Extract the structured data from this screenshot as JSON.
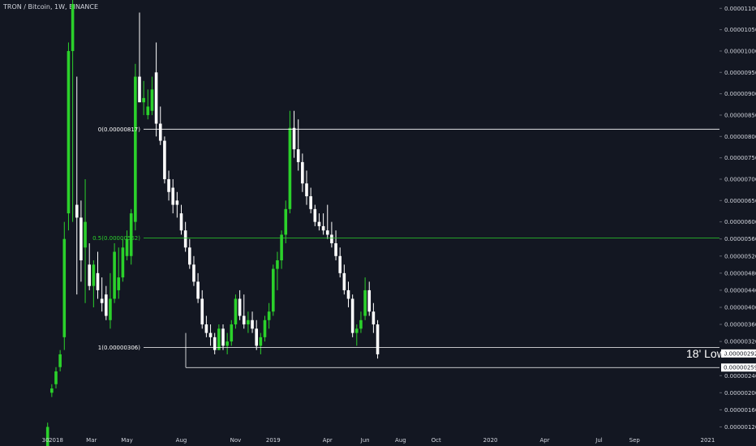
{
  "header": {
    "title": "TRON / Bitcoin, 1W, BINANCE"
  },
  "colors": {
    "background": "#131722",
    "bull": "#2bd12b",
    "bear": "#ffffff",
    "fib_line": "#ffffff",
    "mid_line": "#2bd12b"
  },
  "chart_data": {
    "type": "candlestick",
    "title": "TRON / Bitcoin, 1W, BINANCE",
    "ylim": [
      1e-06,
      1.11e-05
    ],
    "y_ticks": [
      "0.00001100",
      "0.00001050",
      "0.00001000",
      "0.00000950",
      "0.00000900",
      "0.00000850",
      "0.00000800",
      "0.00000750",
      "0.00000700",
      "0.00000650",
      "0.00000600",
      "0.00000560",
      "0.00000520",
      "0.00000480",
      "0.00000440",
      "0.00000400",
      "0.00000360",
      "0.00000320",
      "0.00000240",
      "0.00000200",
      "0.00000160",
      "0.00000120"
    ],
    "y_tick_values": [
      1.1e-05,
      1.05e-05,
      1e-05,
      9.5e-06,
      9e-06,
      8.5e-06,
      8e-06,
      7.5e-06,
      7e-06,
      6.5e-06,
      6e-06,
      5.6e-06,
      5.2e-06,
      4.8e-06,
      4.4e-06,
      4e-06,
      3.6e-06,
      3.2e-06,
      2.4e-06,
      2e-06,
      1.6e-06,
      1.2e-06
    ],
    "x_ticks": [
      {
        "label": "30",
        "week": -2.5
      },
      {
        "label": "2018",
        "week": 0
      },
      {
        "label": "Mar",
        "week": 8.5
      },
      {
        "label": "May",
        "week": 17
      },
      {
        "label": "Aug",
        "week": 30
      },
      {
        "label": "Nov",
        "week": 43
      },
      {
        "label": "2019",
        "week": 52
      },
      {
        "label": "Apr",
        "week": 65
      },
      {
        "label": "Jun",
        "week": 74
      },
      {
        "label": "Aug",
        "week": 82.5
      },
      {
        "label": "Oct",
        "week": 91
      },
      {
        "label": "2020",
        "week": 104
      },
      {
        "label": "Apr",
        "week": 117
      },
      {
        "label": "Jul",
        "week": 130
      },
      {
        "label": "Sep",
        "week": 138.5
      },
      {
        "label": "2021",
        "week": 156
      },
      {
        "label": "Apr",
        "week": 169
      }
    ],
    "candles": [
      {
        "o": 6e-07,
        "h": 1.3e-06,
        "l": 6e-07,
        "c": 1.2e-06
      },
      {
        "o": 2e-06,
        "h": 2.2e-06,
        "l": 1.9e-06,
        "c": 2.1e-06
      },
      {
        "o": 2.2e-06,
        "h": 2.6e-06,
        "l": 2.1e-06,
        "c": 2.5e-06
      },
      {
        "o": 2.6e-06,
        "h": 3e-06,
        "l": 2.5e-06,
        "c": 2.9e-06
      },
      {
        "o": 3.3e-06,
        "h": 6e-06,
        "l": 3e-06,
        "c": 5.6e-06
      },
      {
        "o": 6.2e-06,
        "h": 1.02e-05,
        "l": 5.8e-06,
        "c": 1e-05
      },
      {
        "o": 1e-05,
        "h": 1.12e-05,
        "l": 6e-06,
        "c": 1.11e-05
      },
      {
        "o": 6.4e-06,
        "h": 9.4e-06,
        "l": 4.3e-06,
        "c": 6.1e-06
      },
      {
        "o": 6.1e-06,
        "h": 6.5e-06,
        "l": 4.6e-06,
        "c": 5.1e-06
      },
      {
        "o": 5.4e-06,
        "h": 7e-06,
        "l": 4.1e-06,
        "c": 6e-06
      },
      {
        "o": 5e-06,
        "h": 5.5e-06,
        "l": 4.4e-06,
        "c": 4.5e-06
      },
      {
        "o": 4.5e-06,
        "h": 5.1e-06,
        "l": 4e-06,
        "c": 5e-06
      },
      {
        "o": 4.8e-06,
        "h": 5.3e-06,
        "l": 4.2e-06,
        "c": 4.4e-06
      },
      {
        "o": 4.2e-06,
        "h": 4.7e-06,
        "l": 3.9e-06,
        "c": 4.1e-06
      },
      {
        "o": 4.3e-06,
        "h": 4.5e-06,
        "l": 3.7e-06,
        "c": 3.8e-06
      },
      {
        "o": 3.7e-06,
        "h": 4.8e-06,
        "l": 3.5e-06,
        "c": 4.2e-06
      },
      {
        "o": 4.2e-06,
        "h": 5.5e-06,
        "l": 4.1e-06,
        "c": 5.3e-06
      },
      {
        "o": 4.4e-06,
        "h": 5.4e-06,
        "l": 4.2e-06,
        "c": 4.7e-06
      },
      {
        "o": 4.7e-06,
        "h": 5.6e-06,
        "l": 4.6e-06,
        "c": 5.4e-06
      },
      {
        "o": 5.2e-06,
        "h": 5.8e-06,
        "l": 5.1e-06,
        "c": 5.6e-06
      },
      {
        "o": 5.2e-06,
        "h": 6.3e-06,
        "l": 5e-06,
        "c": 6.2e-06
      },
      {
        "o": 6e-06,
        "h": 9.7e-06,
        "l": 5.8e-06,
        "c": 9.4e-06
      },
      {
        "o": 9.4e-06,
        "h": 1.09e-05,
        "l": 8.8e-06,
        "c": 8.8e-06
      },
      {
        "o": 8.8e-06,
        "h": 9.3e-06,
        "l": 8.5e-06,
        "c": 8.9e-06
      },
      {
        "o": 8.5e-06,
        "h": 9.1e-06,
        "l": 8.4e-06,
        "c": 8.7e-06
      },
      {
        "o": 8.6e-06,
        "h": 9.4e-06,
        "l": 8.5e-06,
        "c": 9.1e-06
      },
      {
        "o": 9.5e-06,
        "h": 1.02e-05,
        "l": 8e-06,
        "c": 8.3e-06
      },
      {
        "o": 8.3e-06,
        "h": 8.7e-06,
        "l": 7.8e-06,
        "c": 7.9e-06
      },
      {
        "o": 7.9e-06,
        "h": 8e-06,
        "l": 6.9e-06,
        "c": 7e-06
      },
      {
        "o": 7e-06,
        "h": 7.2e-06,
        "l": 6.5e-06,
        "c": 6.7e-06
      },
      {
        "o": 6.8e-06,
        "h": 7e-06,
        "l": 6.2e-06,
        "c": 6.4e-06
      },
      {
        "o": 6.5e-06,
        "h": 6.7e-06,
        "l": 6.1e-06,
        "c": 6.4e-06
      },
      {
        "o": 6.2e-06,
        "h": 6.4e-06,
        "l": 5.7e-06,
        "c": 5.8e-06
      },
      {
        "o": 5.8e-06,
        "h": 6e-06,
        "l": 5.3e-06,
        "c": 5.4e-06
      },
      {
        "o": 5.4e-06,
        "h": 5.6e-06,
        "l": 4.9e-06,
        "c": 5e-06
      },
      {
        "o": 5e-06,
        "h": 5.2e-06,
        "l": 4.5e-06,
        "c": 4.6e-06
      },
      {
        "o": 4.6e-06,
        "h": 4.8e-06,
        "l": 4.1e-06,
        "c": 4.2e-06
      },
      {
        "o": 4.2e-06,
        "h": 4.4e-06,
        "l": 3.5e-06,
        "c": 3.6e-06
      },
      {
        "o": 3.6e-06,
        "h": 3.8e-06,
        "l": 3.3e-06,
        "c": 3.4e-06
      },
      {
        "o": 3.4e-06,
        "h": 3.6e-06,
        "l": 3.1e-06,
        "c": 3.3e-06
      },
      {
        "o": 3.3e-06,
        "h": 3.4e-06,
        "l": 2.9e-06,
        "c": 3e-06
      },
      {
        "o": 3e-06,
        "h": 3.6e-06,
        "l": 3e-06,
        "c": 3.5e-06
      },
      {
        "o": 3.5e-06,
        "h": 3.6e-06,
        "l": 3e-06,
        "c": 3.1e-06
      },
      {
        "o": 3.1e-06,
        "h": 3.4e-06,
        "l": 2.9e-06,
        "c": 3.2e-06
      },
      {
        "o": 3.2e-06,
        "h": 3.7e-06,
        "l": 3.1e-06,
        "c": 3.6e-06
      },
      {
        "o": 3.6e-06,
        "h": 4.3e-06,
        "l": 3.5e-06,
        "c": 4.2e-06
      },
      {
        "o": 4.2e-06,
        "h": 4.4e-06,
        "l": 3.7e-06,
        "c": 3.8e-06
      },
      {
        "o": 3.8e-06,
        "h": 4.3e-06,
        "l": 3.5e-06,
        "c": 3.6e-06
      },
      {
        "o": 3.6e-06,
        "h": 3.9e-06,
        "l": 3.4e-06,
        "c": 3.7e-06
      },
      {
        "o": 3.7e-06,
        "h": 3.9e-06,
        "l": 3.4e-06,
        "c": 3.5e-06
      },
      {
        "o": 3.5e-06,
        "h": 3.7e-06,
        "l": 3e-06,
        "c": 3.1e-06
      },
      {
        "o": 3.1e-06,
        "h": 3.4e-06,
        "l": 2.9e-06,
        "c": 3.3e-06
      },
      {
        "o": 3.3e-06,
        "h": 3.8e-06,
        "l": 3.2e-06,
        "c": 3.7e-06
      },
      {
        "o": 3.7e-06,
        "h": 4.1e-06,
        "l": 3.5e-06,
        "c": 3.9e-06
      },
      {
        "o": 3.9e-06,
        "h": 5e-06,
        "l": 3.8e-06,
        "c": 4.9e-06
      },
      {
        "o": 4.9e-06,
        "h": 5.3e-06,
        "l": 4.4e-06,
        "c": 5.1e-06
      },
      {
        "o": 5.1e-06,
        "h": 5.8e-06,
        "l": 4.9e-06,
        "c": 5.7e-06
      },
      {
        "o": 5.7e-06,
        "h": 6.5e-06,
        "l": 5.5e-06,
        "c": 6.3e-06
      },
      {
        "o": 6.3e-06,
        "h": 8.6e-06,
        "l": 6.2e-06,
        "c": 8.2e-06
      },
      {
        "o": 8.2e-06,
        "h": 8.6e-06,
        "l": 7.5e-06,
        "c": 7.7e-06
      },
      {
        "o": 7.7e-06,
        "h": 8.4e-06,
        "l": 7.2e-06,
        "c": 7.4e-06
      },
      {
        "o": 7.4e-06,
        "h": 7.6e-06,
        "l": 6.7e-06,
        "c": 6.9e-06
      },
      {
        "o": 6.9e-06,
        "h": 7.2e-06,
        "l": 6.4e-06,
        "c": 6.6e-06
      },
      {
        "o": 6.6e-06,
        "h": 6.8e-06,
        "l": 6.2e-06,
        "c": 6.3e-06
      },
      {
        "o": 6.3e-06,
        "h": 6.4e-06,
        "l": 5.9e-06,
        "c": 6e-06
      },
      {
        "o": 6e-06,
        "h": 6.2e-06,
        "l": 5.8e-06,
        "c": 5.9e-06
      },
      {
        "o": 5.9e-06,
        "h": 6.2e-06,
        "l": 5.7e-06,
        "c": 5.8e-06
      },
      {
        "o": 5.8e-06,
        "h": 6.4e-06,
        "l": 5.6e-06,
        "c": 5.7e-06
      },
      {
        "o": 5.7e-06,
        "h": 6e-06,
        "l": 5.4e-06,
        "c": 5.5e-06
      },
      {
        "o": 5.5e-06,
        "h": 5.8e-06,
        "l": 5.1e-06,
        "c": 5.2e-06
      },
      {
        "o": 5.2e-06,
        "h": 5.4e-06,
        "l": 4.7e-06,
        "c": 4.8e-06
      },
      {
        "o": 4.8e-06,
        "h": 5e-06,
        "l": 4.3e-06,
        "c": 4.4e-06
      },
      {
        "o": 4.4e-06,
        "h": 4.6e-06,
        "l": 4e-06,
        "c": 4.2e-06
      },
      {
        "o": 4.2e-06,
        "h": 4.3e-06,
        "l": 3.3e-06,
        "c": 3.4e-06
      },
      {
        "o": 3.4e-06,
        "h": 3.6e-06,
        "l": 3.1e-06,
        "c": 3.5e-06
      },
      {
        "o": 3.5e-06,
        "h": 3.9e-06,
        "l": 3.4e-06,
        "c": 3.7e-06
      },
      {
        "o": 3.8e-06,
        "h": 4.7e-06,
        "l": 3.7e-06,
        "c": 4.4e-06
      },
      {
        "o": 4.4e-06,
        "h": 4.6e-06,
        "l": 3.8e-06,
        "c": 3.9e-06
      },
      {
        "o": 3.9e-06,
        "h": 4.1e-06,
        "l": 3.4e-06,
        "c": 3.6e-06
      },
      {
        "o": 3.6e-06,
        "h": 3.7e-06,
        "l": 2.8e-06,
        "c": 2.9e-06
      }
    ],
    "levels": [
      {
        "label": "0(0.00000817)",
        "value": 8.17e-06,
        "color": "#ffffff"
      },
      {
        "label": "0.5(0.00000562)",
        "value": 5.62e-06,
        "color": "#2bd12b"
      },
      {
        "label": "1(0.00000306)",
        "value": 3.06e-06,
        "color": "#ffffff"
      }
    ],
    "price_tags": [
      {
        "label": "0.00000292",
        "value": 2.92e-06
      },
      {
        "label": "0.00000259",
        "value": 2.59e-06
      }
    ],
    "annotation": {
      "label": "18' Low",
      "value": 2.59e-06
    }
  }
}
